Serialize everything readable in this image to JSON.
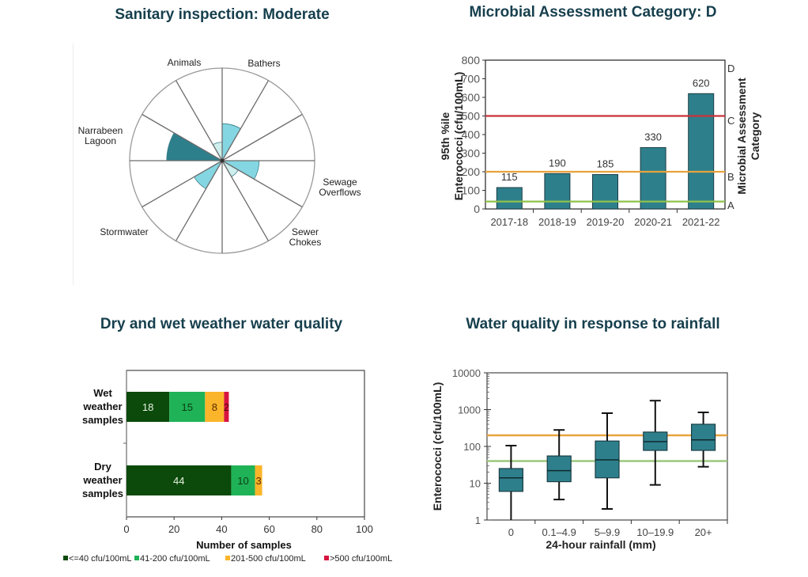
{
  "colors": {
    "teal": "#2e7f8c",
    "teal_dark": "#1f6f7c",
    "light_cyan": "#84d6e2",
    "pale_cyan": "#cfeeee",
    "red": "#c9323a",
    "orange": "#e8a33c",
    "green_line": "#8dc24a",
    "green_line_box": "#9cc87d",
    "dark_green": "#0b4a0b",
    "mid_green": "#1fb257",
    "yellow": "#fbb52a",
    "crimson": "#d7143f",
    "title": "#163f4d"
  },
  "chart_data": [
    {
      "id": "sanitary",
      "type": "polar-area",
      "title": "Sanitary inspection: Moderate",
      "categories": [
        "Bathers",
        "Sewage Overflows",
        "Sewer Chokes",
        "Stormwater",
        "Narrabeen Lagoon",
        "Animals"
      ],
      "segments": 12,
      "slices": [
        {
          "segment": 0,
          "value": 0.4,
          "shade": "light_cyan"
        },
        {
          "segment": 3,
          "value": 0.4,
          "shade": "light_cyan"
        },
        {
          "segment": 4,
          "value": 0.2,
          "shade": "pale_cyan"
        },
        {
          "segment": 7,
          "value": 0.35,
          "shade": "light_cyan"
        },
        {
          "segment": 9,
          "value": 0.6,
          "shade": "teal"
        },
        {
          "segment": 11,
          "value": 0.2,
          "shade": "pale_cyan"
        }
      ],
      "labels": [
        {
          "text": [
            "Animals"
          ],
          "position": "top-left"
        },
        {
          "text": [
            "Bathers"
          ],
          "position": "top-right"
        },
        {
          "text": [
            "Narrabeen",
            "Lagoon"
          ],
          "position": "left"
        },
        {
          "text": [
            "Sewage",
            "Overflows"
          ],
          "position": "right"
        },
        {
          "text": [
            "Stormwater"
          ],
          "position": "bottom-left"
        },
        {
          "text": [
            "Sewer",
            "Chokes"
          ],
          "position": "bottom-right"
        }
      ]
    },
    {
      "id": "mac",
      "type": "bar",
      "title": "Microbial Assessment Category: D",
      "categories": [
        "2017-18",
        "2018-19",
        "2019-20",
        "2020-21",
        "2021-22"
      ],
      "values": [
        115,
        190,
        185,
        330,
        620
      ],
      "ylabel": [
        "95th %ile",
        "Enterococci (cfu/100mL)"
      ],
      "y2label": [
        "Microbial Assessment",
        "Category"
      ],
      "ylim": [
        0,
        800
      ],
      "yticks": [
        0,
        100,
        200,
        300,
        400,
        500,
        600,
        700,
        800
      ],
      "thresholds": [
        {
          "value": 40,
          "color": "green_line",
          "category": "A"
        },
        {
          "value": 200,
          "color": "orange",
          "category": "B"
        },
        {
          "value": 500,
          "color": "red",
          "category": "C"
        }
      ],
      "top_category": "D"
    },
    {
      "id": "weather",
      "type": "stacked-bar-horizontal",
      "title": "Dry and wet weather water quality",
      "categories": [
        [
          "Wet",
          "weather",
          "samples"
        ],
        [
          "Dry",
          "weather",
          "samples"
        ]
      ],
      "series": [
        {
          "name": "<=40 cfu/100mL",
          "color": "dark_green",
          "label_color": "#e8f0e0",
          "values": [
            18,
            44
          ]
        },
        {
          "name": "41-200 cfu/100mL",
          "color": "mid_green",
          "label_color": "#0d3d12",
          "values": [
            15,
            10
          ]
        },
        {
          "name": "201-500 cfu/100mL",
          "color": "yellow",
          "label_color": "#5a2a00",
          "values": [
            8,
            3
          ]
        },
        {
          "name": ">500 cfu/100mL",
          "color": "crimson",
          "label_color": "#5a0010",
          "values": [
            2,
            0
          ]
        }
      ],
      "xlabel": "Number of samples",
      "xlim": [
        0,
        100
      ],
      "xticks": [
        0,
        20,
        40,
        60,
        80,
        100
      ],
      "legend": "bottom"
    },
    {
      "id": "rainfall",
      "type": "box",
      "title": "Water quality in response to rainfall",
      "categories": [
        "0",
        "0.1–4.9",
        "5–9.9",
        "10–19.9",
        "20+"
      ],
      "boxes": [
        {
          "min": 1,
          "q1": 6,
          "median": 14,
          "q3": 25,
          "max": 105
        },
        {
          "min": 3.6,
          "q1": 11,
          "median": 22,
          "q3": 55,
          "max": 280
        },
        {
          "min": 2,
          "q1": 14,
          "median": 43,
          "q3": 140,
          "max": 800
        },
        {
          "min": 9,
          "q1": 78,
          "median": 135,
          "q3": 245,
          "max": 1750
        },
        {
          "min": 28,
          "q1": 78,
          "median": 150,
          "q3": 400,
          "max": 840
        }
      ],
      "ylabel": "Enterococci (cfu/100mL)",
      "xlabel": "24-hour rainfall  (mm)",
      "yscale": "log",
      "ylim": [
        1,
        10000
      ],
      "yticks": [
        1,
        10,
        100,
        1000,
        10000
      ],
      "thresholds": [
        {
          "value": 200,
          "color": "orange"
        },
        {
          "value": 40,
          "color": "green_line_box"
        }
      ]
    }
  ]
}
